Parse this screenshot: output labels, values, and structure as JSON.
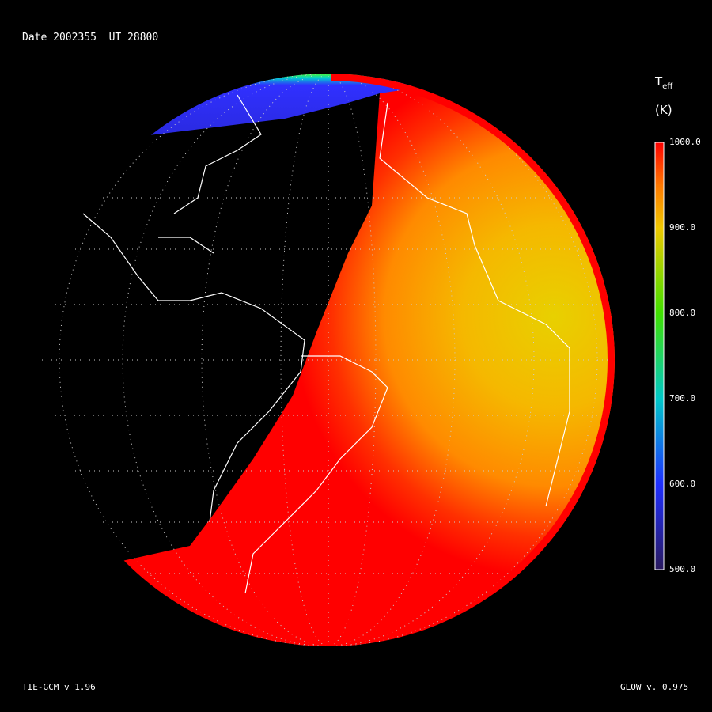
{
  "header": {
    "date_label": "Date 2002355  UT 28800"
  },
  "colorbar": {
    "title_main": "T",
    "title_sub": "eff",
    "units": "(K)",
    "ticks": [
      "1000.0",
      "900.0",
      "800.0",
      "700.0",
      "600.0",
      "500.0"
    ],
    "range": [
      500,
      1000
    ],
    "colors": [
      "#2a1a5e",
      "#1f2fff",
      "#00c8c8",
      "#40e000",
      "#f0c800",
      "#ff7800",
      "#ff0000"
    ]
  },
  "map": {
    "projection": "orthographic",
    "nightside_color": "#000000",
    "coastline_color": "#ffffff",
    "dayside_colors": [
      "#ff0000",
      "#ff6a00",
      "#f5b800",
      "#e8d000"
    ],
    "polar_cap_color": "#2a2ae0"
  },
  "footer": {
    "left": "TIE-GCM v 1.96",
    "right": "GLOW v. 0.975"
  }
}
